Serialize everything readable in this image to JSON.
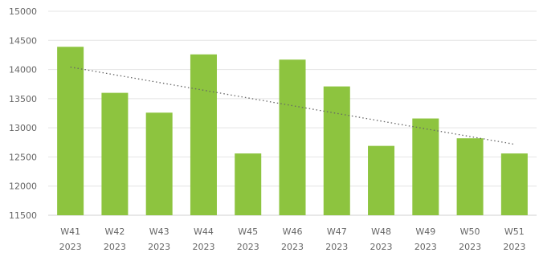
{
  "chart_data": {
    "type": "bar",
    "categories": [
      [
        "W41",
        "2023"
      ],
      [
        "W42",
        "2023"
      ],
      [
        "W43",
        "2023"
      ],
      [
        "W44",
        "2023"
      ],
      [
        "W45",
        "2023"
      ],
      [
        "W46",
        "2023"
      ],
      [
        "W47",
        "2023"
      ],
      [
        "W48",
        "2023"
      ],
      [
        "W49",
        "2023"
      ],
      [
        "W50",
        "2023"
      ],
      [
        "W51",
        "2023"
      ]
    ],
    "values": [
      14390,
      13600,
      13260,
      14260,
      12560,
      14170,
      13710,
      12690,
      13160,
      12820,
      12560
    ],
    "ylim": [
      11500,
      15000
    ],
    "yticks": [
      "11500",
      "12000",
      "12500",
      "13000",
      "13500",
      "14000",
      "14500",
      "15000"
    ],
    "trendline": {
      "type": "linear",
      "style": "dotted"
    },
    "grid": true,
    "colors": {
      "bar": "#8dc43f",
      "grid": "#e4e4e4",
      "axis": "#d0d0d0",
      "trend": "#666666",
      "text": "#666666"
    }
  }
}
